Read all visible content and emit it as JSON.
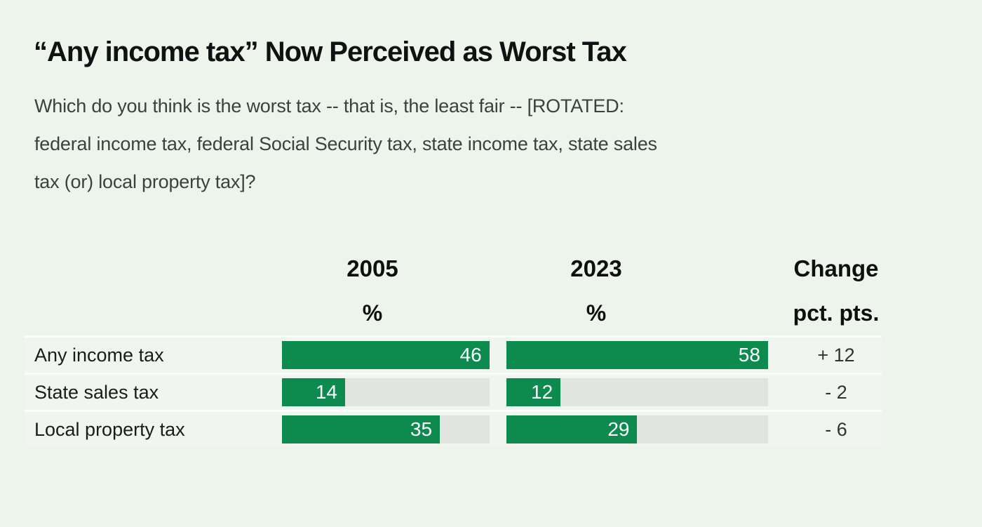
{
  "title": "“Any income tax” Now Perceived as Worst Tax",
  "question_lines": [
    "Which do you think is the worst tax -- that is, the least fair -- [ROTATED:",
    "federal income tax, federal Social Security tax, state income tax, state sales",
    "tax (or) local property tax]?"
  ],
  "columns": {
    "col1_year": "2005",
    "col2_year": "2023",
    "col3_label": "Change",
    "col1_unit": "%",
    "col2_unit": "%",
    "col3_unit": "pct. pts."
  },
  "rows": [
    {
      "label": "Any income tax",
      "v2005": 46,
      "v2023": 58,
      "change": "+ 12"
    },
    {
      "label": "State sales tax",
      "v2005": 14,
      "v2023": 12,
      "change": "- 2"
    },
    {
      "label": "Local property tax",
      "v2005": 35,
      "v2023": 29,
      "change": "- 6"
    }
  ],
  "colors": {
    "bar_green": "#0d8a4e",
    "bar_track": "#e0e5df",
    "background": "#edf4ec"
  },
  "chart_data": {
    "type": "bar",
    "orientation": "horizontal",
    "title": "“Any income tax” Now Perceived as Worst Tax",
    "subtitle": "Which do you think is the worst tax -- that is, the least fair -- [ROTATED: federal income tax, federal Social Security tax, state income tax, state sales tax (or) local property tax]?",
    "categories": [
      "Any income tax",
      "State sales tax",
      "Local property tax"
    ],
    "series": [
      {
        "name": "2005",
        "unit": "%",
        "values": [
          46,
          14,
          35
        ]
      },
      {
        "name": "2023",
        "unit": "%",
        "values": [
          58,
          12,
          29
        ]
      }
    ],
    "change_column": {
      "name": "Change",
      "unit": "pct. pts.",
      "values": [
        "+ 12",
        "- 2",
        "- 6"
      ]
    },
    "legend_position": "column headers",
    "grid": false,
    "bar_scale_note": "bars in each year column are scaled so the column maximum fills the gray track",
    "column_max": [
      46,
      58
    ]
  }
}
